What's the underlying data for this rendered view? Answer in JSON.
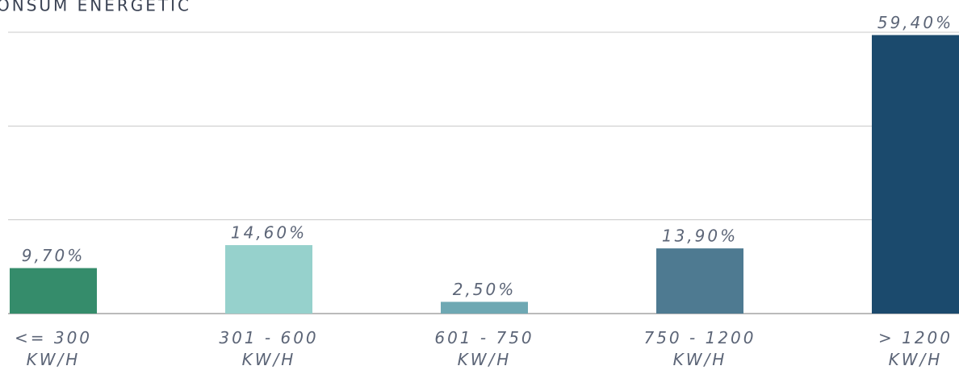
{
  "chart_data": {
    "type": "bar",
    "title": "ONSUM ENERGETIC",
    "categories": [
      "<= 300 KW/H",
      "301 - 600 KW/H",
      "601 - 750 KW/H",
      "750 - 1200 KW/H",
      "> 1200 KW/H"
    ],
    "values": [
      9.7,
      14.6,
      2.5,
      13.9,
      59.4
    ],
    "value_labels": [
      "9,70%",
      "14,60%",
      "2,50%",
      "13,90%",
      "59,40%"
    ],
    "colors": [
      "#358c6b",
      "#96d1cc",
      "#6ea8b3",
      "#4e7a91",
      "#1b4a6d"
    ],
    "ylim": [
      0,
      60
    ],
    "yticks": [
      0,
      20,
      40,
      60
    ],
    "grid": true
  }
}
